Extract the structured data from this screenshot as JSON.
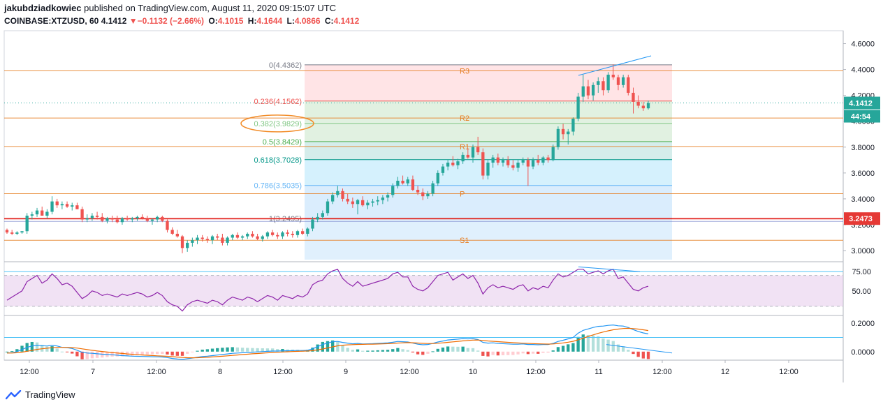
{
  "header": {
    "author": "jakubdziadkowiec",
    "published_text": "published on TradingView.com, August 11, 2020 09:15:07 UTC",
    "symbol": "COINBASE:XTZUSD, 60",
    "last": "4.1412",
    "change": "−0.1132 (−2.66%)",
    "o_label": "O:",
    "o_value": "4.1015",
    "h_label": "H:",
    "h_value": "4.1644",
    "l_label": "L:",
    "l_value": "4.0866",
    "c_label": "C:",
    "c_value": "4.1412"
  },
  "footer": {
    "brand": "TradingView",
    "logo_icon": "tradingview-logo-icon"
  },
  "chart_data": [
    {
      "type": "candlestick",
      "title": "COINBASE:XTZUSD, 60",
      "x_tick_labels": [
        "12:00",
        "7",
        "12:00",
        "8",
        "12:00",
        "9",
        "12:00",
        "10",
        "12:00",
        "11",
        "12:00",
        "12",
        "12:00"
      ],
      "y_tick_labels": [
        "3.0000",
        "3.2000",
        "3.4000",
        "3.6000",
        "3.8000",
        "4.0000",
        "4.2000",
        "4.4000",
        "4.6000"
      ],
      "ylim": [
        2.93,
        4.7
      ],
      "last_price_label": "4.1412",
      "countdown_label": "44:54",
      "red_line_label": "3.2473",
      "red_line_value": 3.2473,
      "last_price_value": 4.1412,
      "colors": {
        "up": "#26a69a",
        "down": "#ef5350",
        "pivot": "#e67e22",
        "red_line": "#e53935",
        "accent_box": "#26a69a"
      },
      "fibonacci": [
        {
          "label": "0(4.4362)",
          "value": 4.4362,
          "color": "#787b86"
        },
        {
          "label": "0.236(4.1562)",
          "value": 4.1562,
          "color": "#ef5350"
        },
        {
          "label": "0.382(3.9829)",
          "value": 3.9829,
          "color": "#81c784"
        },
        {
          "label": "0.5(3.8429)",
          "value": 3.8429,
          "color": "#4caf50"
        },
        {
          "label": "0.618(3.7028)",
          "value": 3.7028,
          "color": "#009688"
        },
        {
          "label": "0.786(3.5035)",
          "value": 3.5035,
          "color": "#64b5f6"
        },
        {
          "label": "1(3.2495)",
          "value": 3.2495,
          "color": "#787b86"
        }
      ],
      "pivots": [
        {
          "label": "R3",
          "value": 4.39
        },
        {
          "label": "R2",
          "value": 4.025
        },
        {
          "label": "R1",
          "value": 3.805
        },
        {
          "label": "P",
          "value": 3.44
        },
        {
          "label": "S1",
          "value": 3.08
        }
      ],
      "candles_ohlc": [
        [
          3.16,
          3.17,
          3.13,
          3.14
        ],
        [
          3.14,
          3.16,
          3.12,
          3.13
        ],
        [
          3.13,
          3.15,
          3.12,
          3.14
        ],
        [
          3.14,
          3.15,
          3.13,
          3.15
        ],
        [
          3.15,
          3.29,
          3.13,
          3.27
        ],
        [
          3.27,
          3.3,
          3.24,
          3.28
        ],
        [
          3.28,
          3.33,
          3.26,
          3.31
        ],
        [
          3.31,
          3.34,
          3.27,
          3.27
        ],
        [
          3.27,
          3.32,
          3.25,
          3.3
        ],
        [
          3.3,
          3.42,
          3.28,
          3.38
        ],
        [
          3.38,
          3.4,
          3.33,
          3.35
        ],
        [
          3.35,
          3.38,
          3.32,
          3.36
        ],
        [
          3.36,
          3.38,
          3.33,
          3.34
        ],
        [
          3.34,
          3.37,
          3.31,
          3.35
        ],
        [
          3.35,
          3.37,
          3.32,
          3.32
        ],
        [
          3.32,
          3.34,
          3.22,
          3.24
        ],
        [
          3.24,
          3.28,
          3.22,
          3.25
        ],
        [
          3.25,
          3.29,
          3.23,
          3.27
        ],
        [
          3.27,
          3.3,
          3.24,
          3.26
        ],
        [
          3.26,
          3.29,
          3.22,
          3.23
        ],
        [
          3.23,
          3.26,
          3.21,
          3.25
        ],
        [
          3.25,
          3.27,
          3.22,
          3.24
        ],
        [
          3.24,
          3.27,
          3.21,
          3.22
        ],
        [
          3.22,
          3.26,
          3.2,
          3.25
        ],
        [
          3.25,
          3.27,
          3.23,
          3.24
        ],
        [
          3.24,
          3.26,
          3.22,
          3.25
        ],
        [
          3.25,
          3.27,
          3.23,
          3.26
        ],
        [
          3.26,
          3.28,
          3.24,
          3.25
        ],
        [
          3.25,
          3.27,
          3.22,
          3.23
        ],
        [
          3.23,
          3.25,
          3.2,
          3.24
        ],
        [
          3.24,
          3.27,
          3.22,
          3.26
        ],
        [
          3.26,
          3.27,
          3.22,
          3.23
        ],
        [
          3.23,
          3.24,
          3.14,
          3.16
        ],
        [
          3.16,
          3.18,
          3.12,
          3.13
        ],
        [
          3.13,
          3.16,
          3.1,
          3.11
        ],
        [
          3.11,
          3.12,
          2.98,
          3.02
        ],
        [
          3.02,
          3.08,
          2.99,
          3.06
        ],
        [
          3.06,
          3.1,
          3.03,
          3.08
        ],
        [
          3.08,
          3.12,
          3.05,
          3.1
        ],
        [
          3.1,
          3.12,
          3.07,
          3.09
        ],
        [
          3.09,
          3.11,
          3.06,
          3.08
        ],
        [
          3.08,
          3.12,
          3.05,
          3.11
        ],
        [
          3.11,
          3.13,
          3.08,
          3.1
        ],
        [
          3.1,
          3.13,
          3.04,
          3.06
        ],
        [
          3.06,
          3.11,
          3.04,
          3.1
        ],
        [
          3.1,
          3.13,
          3.08,
          3.12
        ],
        [
          3.12,
          3.14,
          3.09,
          3.1
        ],
        [
          3.1,
          3.12,
          3.08,
          3.11
        ],
        [
          3.11,
          3.14,
          3.09,
          3.13
        ],
        [
          3.13,
          3.15,
          3.1,
          3.11
        ],
        [
          3.11,
          3.13,
          3.08,
          3.09
        ],
        [
          3.09,
          3.12,
          3.07,
          3.11
        ],
        [
          3.11,
          3.15,
          3.09,
          3.14
        ],
        [
          3.14,
          3.16,
          3.11,
          3.12
        ],
        [
          3.12,
          3.14,
          3.09,
          3.11
        ],
        [
          3.11,
          3.15,
          3.09,
          3.14
        ],
        [
          3.14,
          3.16,
          3.11,
          3.13
        ],
        [
          3.13,
          3.15,
          3.1,
          3.12
        ],
        [
          3.12,
          3.16,
          3.1,
          3.15
        ],
        [
          3.15,
          3.17,
          3.12,
          3.13
        ],
        [
          3.13,
          3.18,
          3.11,
          3.17
        ],
        [
          3.17,
          3.26,
          3.15,
          3.24
        ],
        [
          3.24,
          3.29,
          3.22,
          3.26
        ],
        [
          3.26,
          3.31,
          3.24,
          3.29
        ],
        [
          3.29,
          3.4,
          3.27,
          3.38
        ],
        [
          3.38,
          3.45,
          3.36,
          3.43
        ],
        [
          3.43,
          3.5,
          3.41,
          3.46
        ],
        [
          3.46,
          3.48,
          3.38,
          3.4
        ],
        [
          3.4,
          3.44,
          3.36,
          3.38
        ],
        [
          3.38,
          3.41,
          3.33,
          3.36
        ],
        [
          3.36,
          3.4,
          3.28,
          3.39
        ],
        [
          3.39,
          3.42,
          3.34,
          3.35
        ],
        [
          3.35,
          3.39,
          3.32,
          3.37
        ],
        [
          3.37,
          3.4,
          3.34,
          3.38
        ],
        [
          3.38,
          3.42,
          3.35,
          3.39
        ],
        [
          3.39,
          3.43,
          3.36,
          3.41
        ],
        [
          3.41,
          3.45,
          3.38,
          3.43
        ],
        [
          3.43,
          3.52,
          3.41,
          3.5
        ],
        [
          3.5,
          3.57,
          3.48,
          3.54
        ],
        [
          3.54,
          3.58,
          3.51,
          3.52
        ],
        [
          3.52,
          3.57,
          3.5,
          3.55
        ],
        [
          3.55,
          3.58,
          3.46,
          3.47
        ],
        [
          3.47,
          3.5,
          3.43,
          3.45
        ],
        [
          3.45,
          3.48,
          3.39,
          3.42
        ],
        [
          3.42,
          3.46,
          3.4,
          3.44
        ],
        [
          3.44,
          3.54,
          3.42,
          3.52
        ],
        [
          3.52,
          3.62,
          3.5,
          3.6
        ],
        [
          3.6,
          3.67,
          3.58,
          3.65
        ],
        [
          3.65,
          3.7,
          3.62,
          3.68
        ],
        [
          3.68,
          3.73,
          3.65,
          3.66
        ],
        [
          3.66,
          3.71,
          3.63,
          3.69
        ],
        [
          3.69,
          3.76,
          3.67,
          3.74
        ],
        [
          3.74,
          3.79,
          3.71,
          3.72
        ],
        [
          3.72,
          3.82,
          3.68,
          3.8
        ],
        [
          3.8,
          3.88,
          3.74,
          3.76
        ],
        [
          3.76,
          3.79,
          3.55,
          3.58
        ],
        [
          3.58,
          3.7,
          3.55,
          3.68
        ],
        [
          3.68,
          3.74,
          3.64,
          3.72
        ],
        [
          3.72,
          3.75,
          3.66,
          3.68
        ],
        [
          3.68,
          3.72,
          3.65,
          3.7
        ],
        [
          3.7,
          3.73,
          3.64,
          3.66
        ],
        [
          3.66,
          3.7,
          3.62,
          3.64
        ],
        [
          3.64,
          3.7,
          3.61,
          3.68
        ],
        [
          3.68,
          3.72,
          3.66,
          3.7
        ],
        [
          3.7,
          3.72,
          3.5,
          3.65
        ],
        [
          3.65,
          3.72,
          3.63,
          3.7
        ],
        [
          3.7,
          3.74,
          3.66,
          3.68
        ],
        [
          3.68,
          3.73,
          3.66,
          3.72
        ],
        [
          3.72,
          3.74,
          3.68,
          3.7
        ],
        [
          3.7,
          3.82,
          3.69,
          3.8
        ],
        [
          3.8,
          3.96,
          3.78,
          3.94
        ],
        [
          3.94,
          3.98,
          3.86,
          3.9
        ],
        [
          3.9,
          3.94,
          3.82,
          3.92
        ],
        [
          3.92,
          4.03,
          3.89,
          4.02
        ],
        [
          4.02,
          4.22,
          4.0,
          4.19
        ],
        [
          4.19,
          4.36,
          4.15,
          4.27
        ],
        [
          4.27,
          4.32,
          4.17,
          4.2
        ],
        [
          4.2,
          4.3,
          4.16,
          4.28
        ],
        [
          4.28,
          4.34,
          4.22,
          4.31
        ],
        [
          4.31,
          4.34,
          4.2,
          4.24
        ],
        [
          4.24,
          4.38,
          4.22,
          4.36
        ],
        [
          4.36,
          4.44,
          4.32,
          4.34
        ],
        [
          4.34,
          4.36,
          4.24,
          4.28
        ],
        [
          4.28,
          4.36,
          4.26,
          4.34
        ],
        [
          4.34,
          4.36,
          4.2,
          4.22
        ],
        [
          4.22,
          4.26,
          4.06,
          4.15
        ],
        [
          4.15,
          4.2,
          4.1,
          4.12
        ],
        [
          4.12,
          4.15,
          4.08,
          4.1
        ],
        [
          4.1,
          4.16,
          4.09,
          4.14
        ]
      ]
    },
    {
      "type": "line",
      "title": "RSI",
      "y_tick_labels": [
        "75.00",
        "50.00"
      ],
      "ylim": [
        20,
        85
      ],
      "band": [
        30,
        70
      ],
      "values": [
        38,
        42,
        46,
        50,
        62,
        66,
        70,
        60,
        64,
        72,
        66,
        58,
        60,
        56,
        48,
        40,
        44,
        50,
        48,
        44,
        46,
        44,
        42,
        46,
        44,
        46,
        48,
        46,
        42,
        44,
        48,
        44,
        36,
        32,
        30,
        24,
        32,
        36,
        38,
        36,
        34,
        38,
        36,
        32,
        38,
        42,
        40,
        38,
        42,
        40,
        36,
        40,
        44,
        42,
        38,
        44,
        42,
        40,
        44,
        42,
        46,
        58,
        62,
        64,
        72,
        76,
        78,
        66,
        60,
        56,
        62,
        56,
        58,
        60,
        62,
        64,
        66,
        72,
        74,
        68,
        68,
        56,
        52,
        50,
        54,
        62,
        70,
        72,
        74,
        64,
        68,
        72,
        66,
        70,
        60,
        46,
        54,
        58,
        54,
        56,
        54,
        52,
        56,
        58,
        50,
        54,
        52,
        56,
        54,
        64,
        72,
        68,
        70,
        74,
        78,
        78,
        72,
        74,
        76,
        72,
        76,
        78,
        66,
        68,
        60,
        52,
        50,
        54,
        56
      ]
    },
    {
      "type": "line",
      "title": "MACD",
      "y_tick_labels": [
        "0.2000",
        "0.0000"
      ],
      "ylim": [
        -0.06,
        0.24
      ],
      "macd": [
        -0.01,
        -0.008,
        0.0,
        0.015,
        0.03,
        0.04,
        0.045,
        0.042,
        0.04,
        0.045,
        0.04,
        0.03,
        0.028,
        0.022,
        0.01,
        -0.005,
        -0.01,
        -0.012,
        -0.015,
        -0.018,
        -0.02,
        -0.022,
        -0.025,
        -0.028,
        -0.03,
        -0.032,
        -0.033,
        -0.034,
        -0.035,
        -0.036,
        -0.037,
        -0.038,
        -0.042,
        -0.048,
        -0.052,
        -0.055,
        -0.05,
        -0.045,
        -0.04,
        -0.035,
        -0.032,
        -0.028,
        -0.024,
        -0.02,
        -0.016,
        -0.012,
        -0.01,
        -0.008,
        -0.006,
        -0.004,
        -0.002,
        0.0,
        0.002,
        0.004,
        0.004,
        0.006,
        0.006,
        0.007,
        0.008,
        0.008,
        0.01,
        0.02,
        0.035,
        0.05,
        0.06,
        0.07,
        0.072,
        0.065,
        0.06,
        0.055,
        0.058,
        0.054,
        0.055,
        0.056,
        0.058,
        0.06,
        0.062,
        0.066,
        0.072,
        0.07,
        0.068,
        0.06,
        0.052,
        0.048,
        0.05,
        0.058,
        0.068,
        0.075,
        0.082,
        0.085,
        0.088,
        0.092,
        0.09,
        0.092,
        0.085,
        0.065,
        0.06,
        0.062,
        0.058,
        0.056,
        0.054,
        0.052,
        0.052,
        0.054,
        0.05,
        0.05,
        0.048,
        0.05,
        0.05,
        0.058,
        0.072,
        0.08,
        0.09,
        0.1,
        0.13,
        0.15,
        0.16,
        0.17,
        0.178,
        0.18,
        0.185,
        0.188,
        0.182,
        0.18,
        0.17,
        0.155,
        0.142,
        0.132,
        0.125
      ]
    }
  ]
}
